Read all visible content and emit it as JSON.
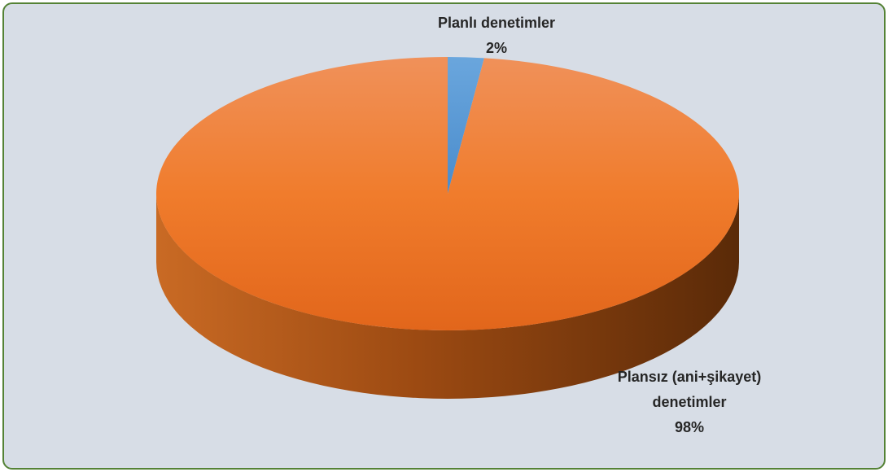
{
  "chart_data": {
    "type": "pie",
    "categories": [
      "Planlı denetimler",
      "Plansız (ani+şikayet) denetimler"
    ],
    "values": [
      2,
      98
    ],
    "value_labels": [
      "2%",
      "98%"
    ],
    "colors": [
      "#5b9bd5",
      "#ed7d31"
    ]
  }
}
